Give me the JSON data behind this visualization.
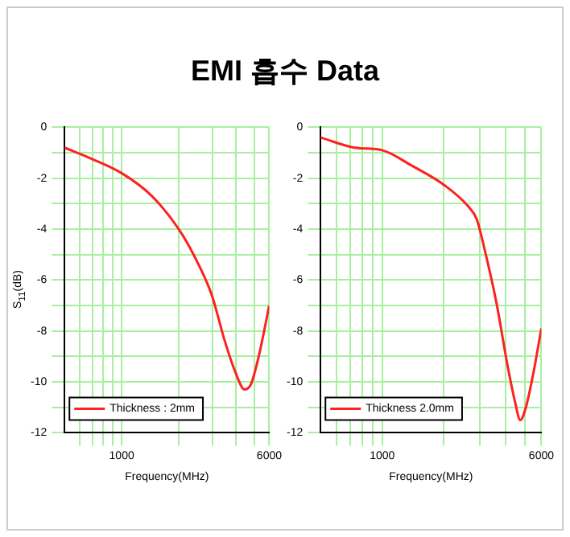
{
  "chart_data": [
    {
      "type": "line",
      "title": "EMI 흡수 Data",
      "xlabel": "Frequency(MHz)",
      "ylabel": "S$_{11}$(dB)",
      "x": [
        500,
        675,
        1000,
        1443,
        2000,
        2394,
        2990,
        3500,
        3970,
        4450,
        4800,
        5280,
        6000
      ],
      "series": [
        {
          "name": "Thickness : 2mm",
          "color": "#ff2020",
          "values": [
            -0.8,
            -1.2,
            -1.8,
            -2.7,
            -4.0,
            -5.0,
            -6.6,
            -8.4,
            -9.6,
            -10.3,
            -10.1,
            -9.0,
            -7.0
          ]
        }
      ],
      "log": "x",
      "xlim": [
        500,
        6000
      ],
      "xticks": [
        {
          "value": 600,
          "label": null
        },
        {
          "value": 700,
          "label": null
        },
        {
          "value": 800,
          "label": null
        },
        {
          "value": 900,
          "label": null
        },
        {
          "value": 1000,
          "label": "1000"
        },
        {
          "value": 2000,
          "label": null
        },
        {
          "value": 3000,
          "label": null
        },
        {
          "value": 4000,
          "label": null
        },
        {
          "value": 5000,
          "label": null
        },
        {
          "value": 6000,
          "label": "6000"
        }
      ],
      "ylim": [
        -12,
        0
      ],
      "yticks": [
        -12,
        {
          "value": -11,
          "label": null
        },
        -10,
        {
          "value": -9,
          "label": null
        },
        -8,
        {
          "value": -7,
          "label": null
        },
        -6,
        {
          "value": -5,
          "label": null
        },
        -4,
        {
          "value": -3,
          "label": null
        },
        -2,
        {
          "value": -1,
          "label": null
        },
        0
      ],
      "grid": true,
      "legend": "bottom left",
      "marker": "none",
      "line_style": "solid"
    },
    {
      "type": "line",
      "xlabel": "Frequency(MHz)",
      "x": [
        500,
        737,
        1000,
        1392,
        2037,
        2630,
        2895,
        3190,
        3620,
        4110,
        4465,
        4730,
        5040,
        5470,
        6000
      ],
      "series": [
        {
          "name": "Thickness 2.0mm",
          "color": "#ff2020",
          "values": [
            -0.4,
            -0.8,
            -0.9,
            -1.5,
            -2.3,
            -3.1,
            -3.6,
            -4.9,
            -6.9,
            -9.4,
            -10.8,
            -11.5,
            -11.0,
            -9.7,
            -7.9
          ]
        }
      ],
      "log": "x",
      "xlim": [
        500,
        6000
      ],
      "xticks": [
        {
          "value": 600,
          "label": null
        },
        {
          "value": 700,
          "label": null
        },
        {
          "value": 800,
          "label": null
        },
        {
          "value": 900,
          "label": null
        },
        {
          "value": 1000,
          "label": "1000"
        },
        {
          "value": 2000,
          "label": null
        },
        {
          "value": 3000,
          "label": null
        },
        {
          "value": 4000,
          "label": null
        },
        {
          "value": 5000,
          "label": null
        },
        {
          "value": 6000,
          "label": "6000"
        }
      ],
      "ylim": [
        -12,
        0
      ],
      "yticks": [
        -12,
        {
          "value": -11,
          "label": null
        },
        -10,
        {
          "value": -9,
          "label": null
        },
        -8,
        {
          "value": -7,
          "label": null
        },
        -6,
        {
          "value": -5,
          "label": null
        },
        -4,
        {
          "value": -3,
          "label": null
        },
        -2,
        {
          "value": -1,
          "label": null
        },
        0
      ],
      "grid": true,
      "legend": "bottom left",
      "marker": "none",
      "line_style": "solid"
    }
  ]
}
